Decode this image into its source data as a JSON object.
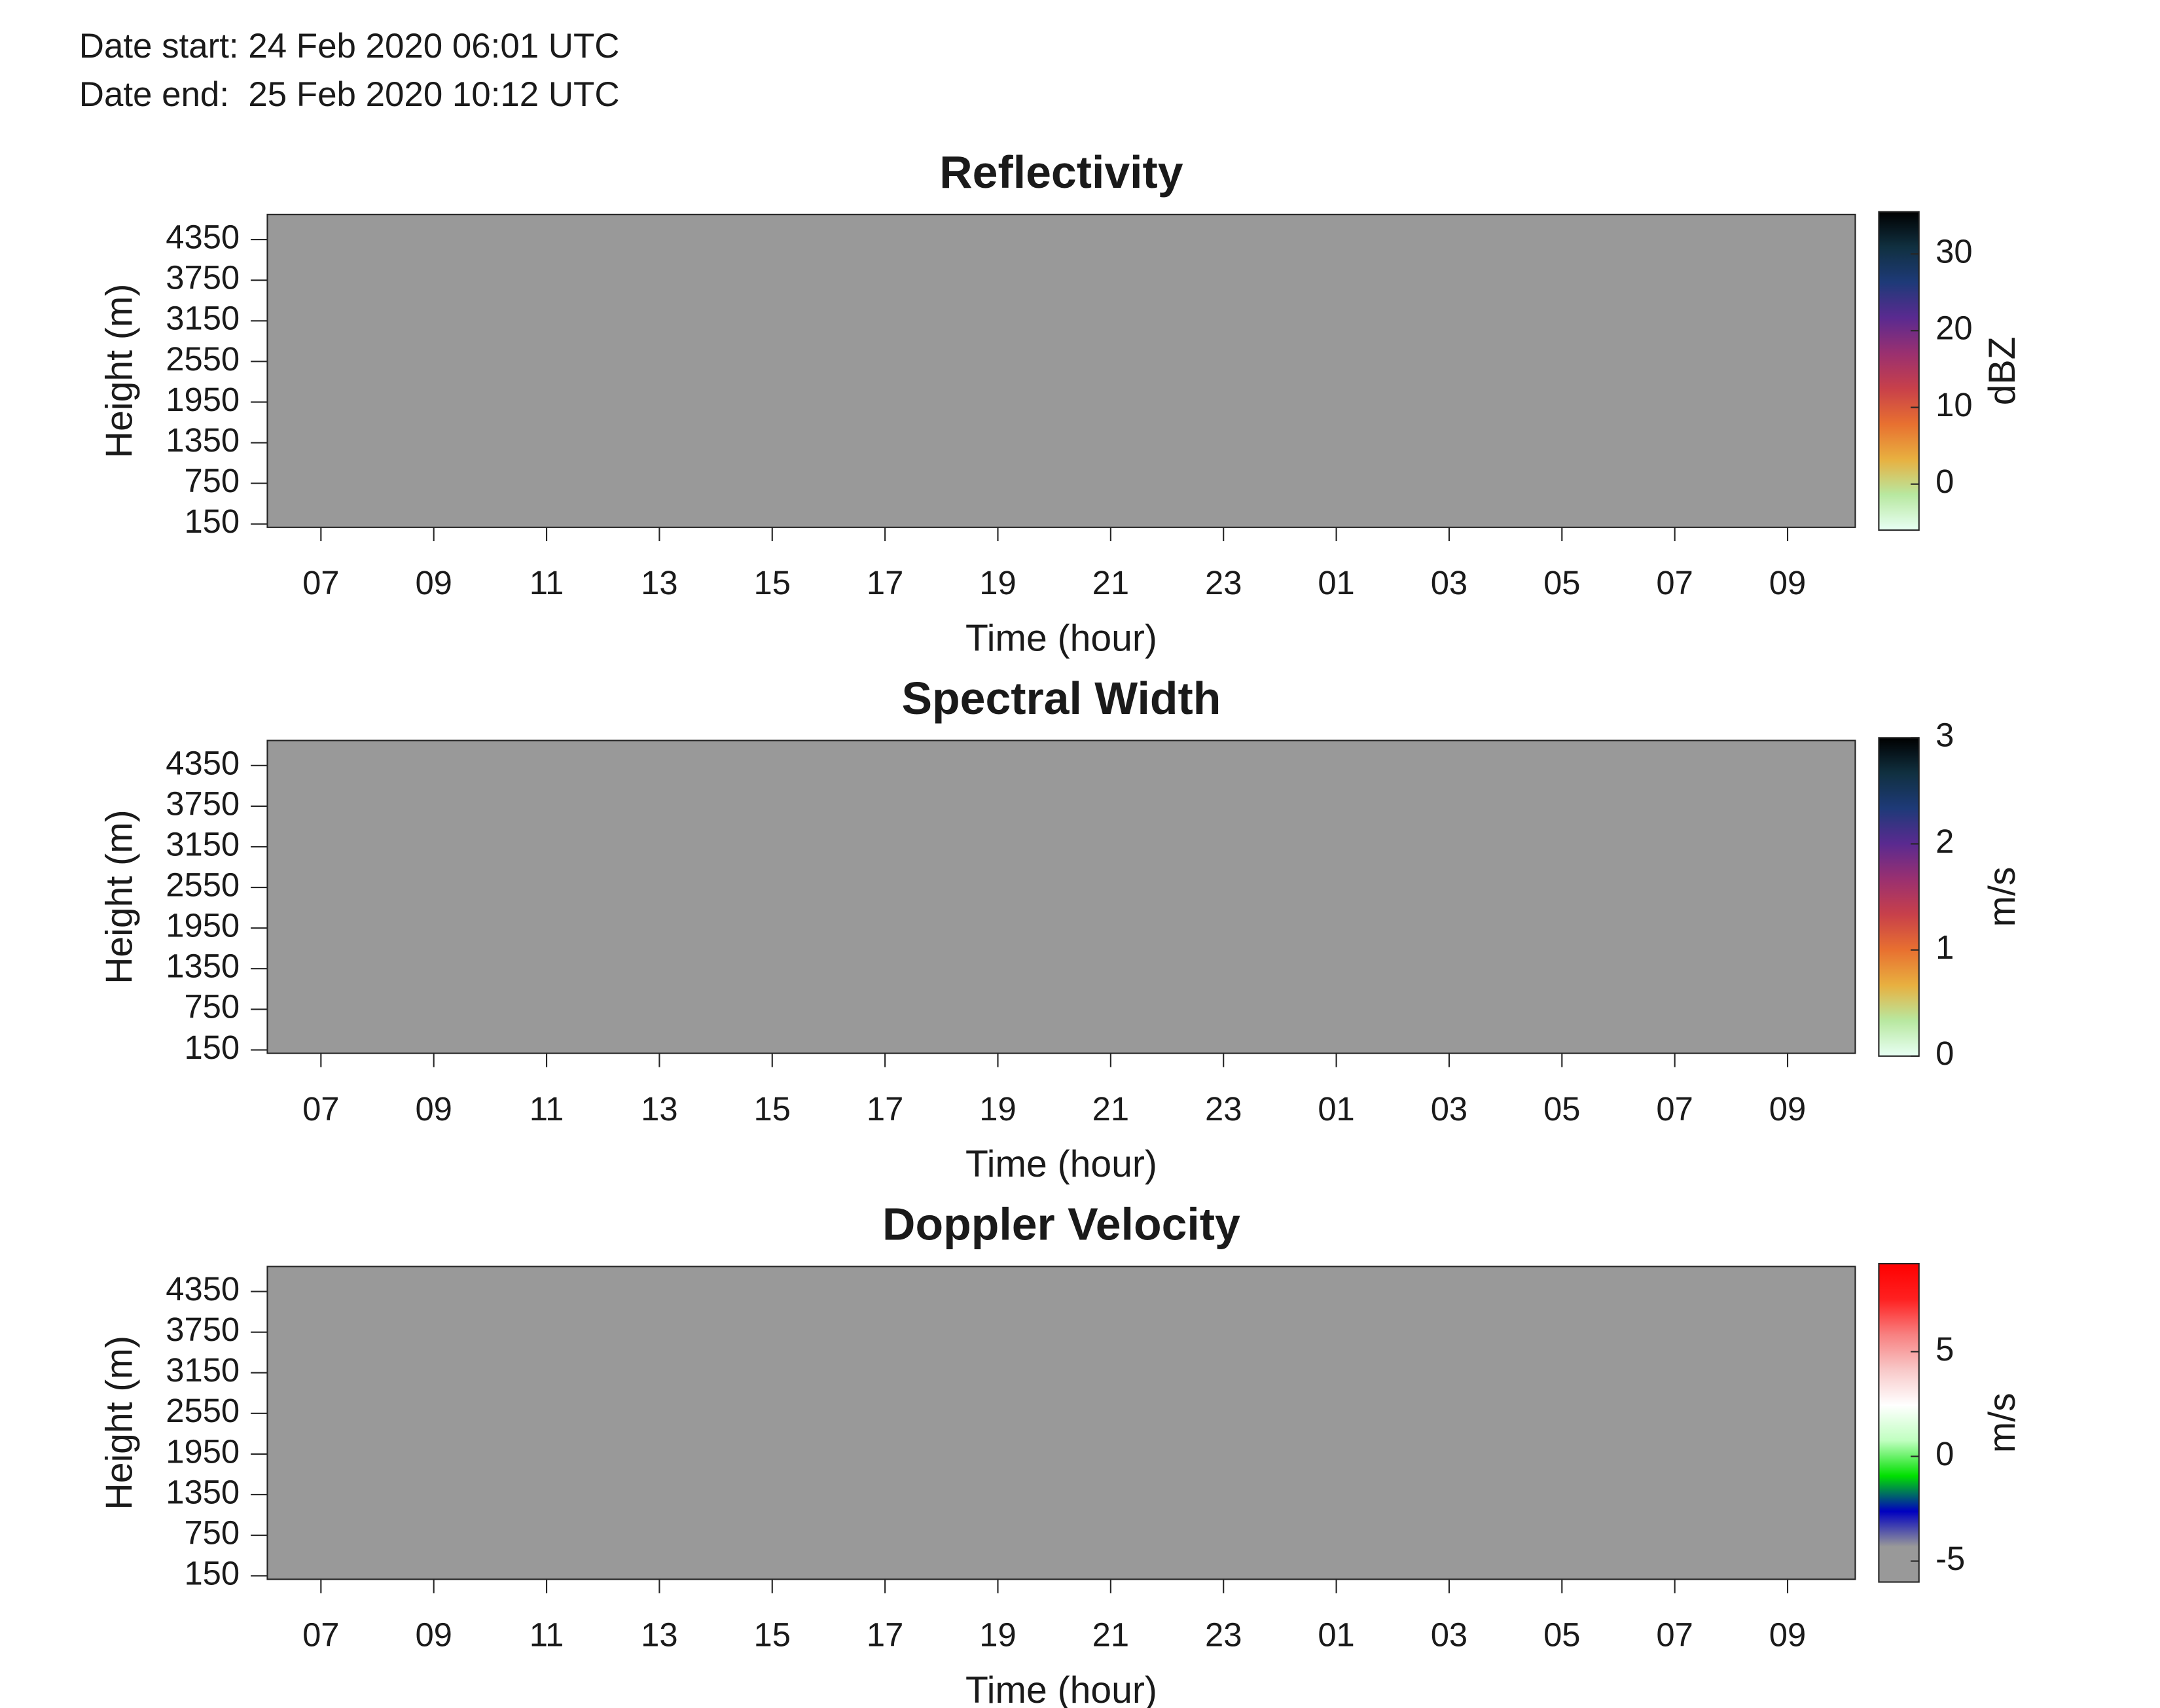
{
  "header": {
    "date_start": "Date start: 24 Feb 2020 06:01 UTC",
    "date_end": "Date end:  25 Feb 2020 10:12 UTC"
  },
  "chart_data": [
    {
      "type": "heatmap",
      "title": "Reflectivity",
      "xlabel": "Time (hour)",
      "ylabel": "Height (m)",
      "xlim": [
        6.05,
        34.2
      ],
      "xticks": [
        {
          "value": 7,
          "label": "07"
        },
        {
          "value": 9,
          "label": "09"
        },
        11,
        13,
        15,
        17,
        19,
        21,
        23,
        {
          "value": 25,
          "label": "01"
        },
        {
          "value": 27,
          "label": "03"
        },
        {
          "value": 29,
          "label": "05"
        },
        {
          "value": 31,
          "label": "07"
        },
        {
          "value": 33,
          "label": "09"
        }
      ],
      "ylim": [
        100,
        4720
      ],
      "yticks": [
        150,
        750,
        1350,
        1950,
        2550,
        3150,
        3750,
        4350
      ],
      "background": "#999999",
      "colorbar_label": "dBZ",
      "clim": [
        -6,
        35.5
      ],
      "cticks": [
        0,
        10,
        20,
        30
      ],
      "colormap": [
        "#e8fff4",
        "#b8e8a0",
        "#e8b040",
        "#e87030",
        "#c8404a",
        "#9a3070",
        "#5a2a90",
        "#1e3a78",
        "#103040",
        "#000000"
      ]
    },
    {
      "type": "heatmap",
      "title": "Spectral Width",
      "xlabel": "Time (hour)",
      "ylabel": "Height (m)",
      "xlim": [
        6.05,
        34.2
      ],
      "xticks": [
        {
          "value": 7,
          "label": "07"
        },
        {
          "value": 9,
          "label": "09"
        },
        11,
        13,
        15,
        17,
        19,
        21,
        23,
        {
          "value": 25,
          "label": "01"
        },
        {
          "value": 27,
          "label": "03"
        },
        {
          "value": 29,
          "label": "05"
        },
        {
          "value": 31,
          "label": "07"
        },
        {
          "value": 33,
          "label": "09"
        }
      ],
      "ylim": [
        100,
        4720
      ],
      "yticks": [
        150,
        750,
        1350,
        1950,
        2550,
        3150,
        3750,
        4350
      ],
      "background": "#999999",
      "colorbar_label": "m/s",
      "clim": [
        0,
        3
      ],
      "cticks": [
        0,
        1,
        2,
        3
      ],
      "colormap": [
        "#e8fff4",
        "#b8e8a0",
        "#e8b040",
        "#e87030",
        "#c8404a",
        "#9a3070",
        "#5a2a90",
        "#1e3a78",
        "#103040",
        "#000000"
      ]
    },
    {
      "type": "heatmap",
      "title": "Doppler Velocity",
      "xlabel": "Time (hour)",
      "ylabel": "Height (m)",
      "xlim": [
        6.05,
        34.2
      ],
      "xticks": [
        {
          "value": 7,
          "label": "07"
        },
        {
          "value": 9,
          "label": "09"
        },
        11,
        13,
        15,
        17,
        19,
        21,
        23,
        {
          "value": 25,
          "label": "01"
        },
        {
          "value": 27,
          "label": "03"
        },
        {
          "value": 29,
          "label": "05"
        },
        {
          "value": 31,
          "label": "07"
        },
        {
          "value": 33,
          "label": "09"
        }
      ],
      "ylim": [
        100,
        4720
      ],
      "yticks": [
        150,
        750,
        1350,
        1950,
        2550,
        3150,
        3750,
        4350
      ],
      "background": "#999999",
      "colorbar_label": "m/s",
      "clim": [
        -6,
        9.2
      ],
      "cticks": [
        -5,
        0,
        5
      ],
      "colormap": [
        "#999999",
        "#999999",
        "#0000c0",
        "#00e000",
        "#c0ffc0",
        "#ffffff",
        "#f8c8c8",
        "#f88080",
        "#ff2020",
        "#ff0000"
      ]
    }
  ]
}
